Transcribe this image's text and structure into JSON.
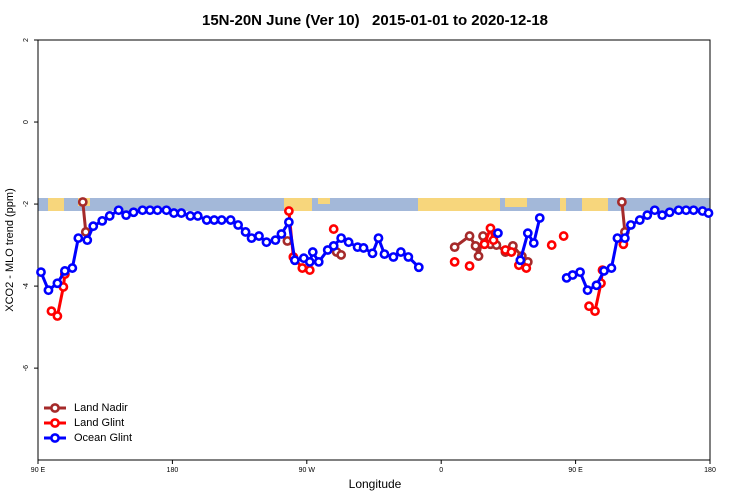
{
  "chart_data": {
    "type": "line",
    "title": "15N-20N June (Ver 10)   2015-01-01 to 2020-12-18",
    "x_label": "Longitude",
    "y_label": "XCO2 - MLO trend (ppm)",
    "xlim": [
      90,
      540
    ],
    "ylim": [
      -8.24,
      2
    ],
    "xticks": [
      {
        "value": 90,
        "label": "90 E"
      },
      180,
      {
        "value": 270,
        "label": "90 W"
      },
      {
        "value": 360,
        "label": "0"
      },
      {
        "value": 450,
        "label": "90 E"
      },
      {
        "value": 540,
        "label": "180"
      }
    ],
    "yticks": [
      2,
      0,
      -2,
      -4,
      -6
    ],
    "legend": "bottom-left",
    "series": [
      {
        "name": "Land Nadir",
        "color": "#a52a2a",
        "x": [
          120,
          122,
          null,
          257,
          null,
          290,
          293,
          null,
          369,
          379,
          383,
          385,
          388,
          393,
          397,
          403,
          408,
          414,
          418,
          null,
          481,
          483
        ],
        "values": [
          -1.95,
          -2.68,
          null,
          -2.9,
          null,
          -3.17,
          -3.24,
          null,
          -3.05,
          -2.78,
          -3.02,
          -3.27,
          -2.78,
          -2.98,
          -3.0,
          -3.17,
          -3.02,
          -3.27,
          -3.41,
          null,
          -1.95,
          -2.68
        ]
      },
      {
        "name": "Land Glint",
        "color": "#ff0000",
        "x": [
          99,
          103,
          107,
          108,
          null,
          258,
          261,
          267,
          272,
          null,
          288,
          null,
          369,
          null,
          379,
          null,
          389,
          393,
          395,
          null,
          403,
          407,
          null,
          412,
          417,
          null,
          434,
          null,
          442,
          null,
          459,
          463,
          467,
          468,
          null,
          482
        ],
        "values": [
          -4.61,
          -4.73,
          -4.02,
          -3.71,
          null,
          -2.17,
          -3.29,
          -3.56,
          -3.61,
          null,
          -2.61,
          null,
          -3.41,
          null,
          -3.51,
          null,
          -2.98,
          -2.59,
          -2.88,
          null,
          -3.12,
          -3.17,
          null,
          -3.49,
          -3.56,
          null,
          -3.0,
          null,
          -2.78,
          null,
          -4.49,
          -4.61,
          -3.93,
          -3.61,
          null,
          -2.98
        ]
      },
      {
        "name": "Ocean Glint",
        "color": "#0000ff",
        "x": [
          92,
          97,
          103,
          108,
          113,
          117,
          123,
          127,
          133,
          138,
          144,
          149,
          154,
          160,
          165,
          170,
          176,
          181,
          186,
          192,
          197,
          203,
          208,
          213,
          219,
          224,
          229,
          233,
          238,
          243,
          249,
          253,
          258,
          262,
          268,
          272,
          274,
          278,
          284,
          288,
          293,
          298,
          304,
          308,
          314,
          318,
          322,
          328,
          333,
          338,
          345,
          null,
          398,
          null,
          413,
          418,
          422,
          426,
          null,
          444,
          448,
          453,
          458,
          464,
          469,
          474,
          478,
          483,
          487,
          493,
          498,
          503,
          508,
          513,
          519,
          524,
          529,
          535,
          539
        ],
        "values": [
          -3.66,
          -4.1,
          -3.93,
          -3.63,
          -3.56,
          -2.83,
          -2.88,
          -2.54,
          -2.41,
          -2.29,
          -2.15,
          -2.27,
          -2.2,
          -2.15,
          -2.15,
          -2.15,
          -2.15,
          -2.22,
          -2.22,
          -2.29,
          -2.29,
          -2.39,
          -2.39,
          -2.39,
          -2.39,
          -2.51,
          -2.68,
          -2.83,
          -2.78,
          -2.93,
          -2.88,
          -2.73,
          -2.44,
          -3.37,
          -3.32,
          -3.41,
          -3.17,
          -3.41,
          -3.12,
          -3.02,
          -2.83,
          -2.93,
          -3.05,
          -3.07,
          -3.2,
          -2.83,
          -3.22,
          -3.29,
          -3.17,
          -3.29,
          -3.54,
          null,
          -2.71,
          null,
          -3.37,
          -2.71,
          -2.95,
          -2.34,
          null,
          -3.8,
          -3.73,
          -3.66,
          -4.1,
          -3.98,
          -3.63,
          -3.56,
          -2.83,
          -2.83,
          -2.51,
          -2.39,
          -2.27,
          -2.15,
          -2.27,
          -2.2,
          -2.15,
          -2.15,
          -2.15,
          -2.17,
          -2.22
        ]
      }
    ]
  }
}
